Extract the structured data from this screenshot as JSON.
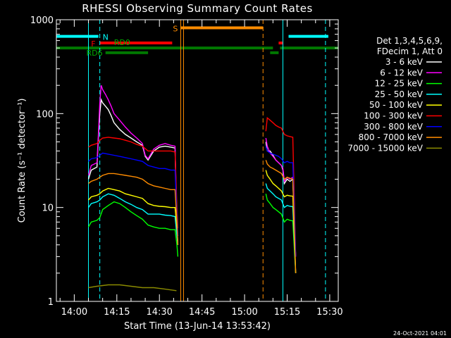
{
  "chart_data": {
    "type": "line",
    "title": "RHESSI Observing Summary Count Rates",
    "xlabel": "Start Time (13-Jun-14 13:53:42)",
    "ylabel": "Count Rate (s⁻¹ detector⁻¹)",
    "yscale": "log",
    "ylim": [
      1,
      1000
    ],
    "xlim": [
      "13:53:42",
      "15:33:00"
    ],
    "x_ticks": [
      "14:00",
      "14:15",
      "14:30",
      "14:45",
      "15:00",
      "15:15",
      "15:30"
    ],
    "y_ticks": [
      "1",
      "10",
      "100",
      "1000"
    ],
    "date_stamp": "24-Oct-2021 04:01",
    "legend": {
      "header": [
        "Det 1,3,4,5,6,9,",
        "FDecim 1, Att 0"
      ],
      "placement": "right",
      "entries": [
        {
          "label": "3 - 6 keV",
          "color": "#ffffff"
        },
        {
          "label": "6 - 12 keV",
          "color": "#ff00ff"
        },
        {
          "label": "12 - 25 keV",
          "color": "#00ff00"
        },
        {
          "label": "25 - 50 keV",
          "color": "#00ffff"
        },
        {
          "label": "50 - 100 keV",
          "color": "#ffff00"
        },
        {
          "label": "100 - 300 keV",
          "color": "#ff0000"
        },
        {
          "label": "300 - 800 keV",
          "color": "#0000ff"
        },
        {
          "label": "800 - 7000 keV",
          "color": "#ff8c00"
        },
        {
          "label": "7000 - 15000 keV",
          "color": "#8b8b00"
        }
      ]
    },
    "flag_labels": {
      "night": "N",
      "flare": "F",
      "saa": "S",
      "rd0": "RD0",
      "rd6": "RD6"
    },
    "flag_bars": [
      {
        "name": "N",
        "color": "#00ffff",
        "start": "13:53:42",
        "end": "14:08:30",
        "level": 665
      },
      {
        "name": "N",
        "color": "#00ffff",
        "start": "15:15:30",
        "end": "15:29:30",
        "level": 665
      },
      {
        "name": "F",
        "color": "#ff0000",
        "start": "14:09:00",
        "end": "14:34:30",
        "level": 565
      },
      {
        "name": "F",
        "color": "#ff0000",
        "start": "15:12:00",
        "end": "15:13:30",
        "level": 565
      },
      {
        "name": "S",
        "color": "#ff8c00",
        "start": "14:37:30",
        "end": "15:06:30",
        "level": 820
      },
      {
        "name": "RD0",
        "color": "#007700",
        "start": "13:53:42",
        "end": "15:10:00",
        "level": 500
      },
      {
        "name": "RD0",
        "color": "#007700",
        "start": "15:12:30",
        "end": "15:33:00",
        "level": 500
      },
      {
        "name": "RD6",
        "color": "#007700",
        "start": "14:11:00",
        "end": "14:26:00",
        "level": 445
      },
      {
        "name": "RD6",
        "color": "#007700",
        "start": "15:09:00",
        "end": "15:12:00",
        "level": 445
      }
    ],
    "vertical_markers": [
      {
        "time": "14:05:00",
        "color": "#00ffff",
        "style": "solid"
      },
      {
        "time": "14:09:00",
        "color": "#00ffff",
        "style": "dashed"
      },
      {
        "time": "14:37:30",
        "color": "#ff8c00",
        "style": "solid"
      },
      {
        "time": "14:38:30",
        "color": "#ff8c00",
        "style": "solid"
      },
      {
        "time": "15:06:30",
        "color": "#ff8c00",
        "style": "dashed"
      },
      {
        "time": "15:13:30",
        "color": "#00ffff",
        "style": "solid"
      },
      {
        "time": "15:28:30",
        "color": "#00ffff",
        "style": "dashed"
      }
    ],
    "series": [
      {
        "name": "3 - 6 keV",
        "color": "#ffffff",
        "segments": [
          {
            "x": [
              "14:05:00",
              "14:06:00",
              "14:08:00",
              "14:08:30",
              "14:09:00",
              "14:09:30",
              "14:10:00",
              "14:11:00",
              "14:12:00",
              "14:13:00",
              "14:14:00",
              "14:16:00",
              "14:18:00",
              "14:20:00",
              "14:22:00",
              "14:24:00",
              "14:25:00",
              "14:26:00",
              "14:28:00",
              "14:30:00",
              "14:32:00",
              "14:34:00",
              "14:35:30",
              "14:36:10",
              "14:36:30"
            ],
            "y": [
              20,
              25,
              27,
              55,
              100,
              140,
              130,
              120,
              110,
              95,
              80,
              68,
              60,
              55,
              50,
              46,
              35,
              32,
              40,
              44,
              45,
              44,
              43,
              6,
              4
            ]
          },
          {
            "x": [
              "15:07:30",
              "15:08:00",
              "15:09:00",
              "15:10:00",
              "15:11:00",
              "15:12:00",
              "15:13:00",
              "15:13:30",
              "15:14:00",
              "15:15:00",
              "15:16:00",
              "15:17:00",
              "15:18:00"
            ],
            "y": [
              50,
              40,
              40,
              36,
              32,
              30,
              28,
              25,
              18,
              20,
              19,
              20,
              3
            ]
          }
        ]
      },
      {
        "name": "6 - 12 keV",
        "color": "#ff00ff",
        "segments": [
          {
            "x": [
              "14:05:00",
              "14:06:00",
              "14:08:00",
              "14:08:30",
              "14:09:00",
              "14:09:30",
              "14:10:00",
              "14:11:00",
              "14:12:00",
              "14:13:00",
              "14:14:00",
              "14:16:00",
              "14:18:00",
              "14:20:00",
              "14:22:00",
              "14:24:00",
              "14:25:00",
              "14:26:00",
              "14:28:00",
              "14:30:00",
              "14:32:00",
              "14:34:00",
              "14:35:30",
              "14:36:10",
              "14:36:30"
            ],
            "y": [
              22,
              28,
              30,
              60,
              130,
              200,
              180,
              160,
              140,
              120,
              100,
              85,
              72,
              62,
              55,
              48,
              36,
              33,
              42,
              46,
              48,
              46,
              45,
              7,
              5
            ]
          },
          {
            "x": [
              "15:07:30",
              "15:08:00",
              "15:09:00",
              "15:10:00",
              "15:11:00",
              "15:12:00",
              "15:13:00",
              "15:13:30",
              "15:14:00",
              "15:15:00",
              "15:16:00",
              "15:17:00",
              "15:18:00"
            ],
            "y": [
              55,
              45,
              38,
              35,
              32,
              30,
              28,
              26,
              19,
              21,
              20,
              21,
              3
            ]
          }
        ]
      },
      {
        "name": "12 - 25 keV",
        "color": "#00ff00",
        "segments": [
          {
            "x": [
              "14:05:00",
              "14:06:00",
              "14:08:00",
              "14:09:00",
              "14:10:00",
              "14:12:00",
              "14:14:00",
              "14:16:00",
              "14:18:00",
              "14:20:00",
              "14:22:00",
              "14:24:00",
              "14:26:00",
              "14:28:00",
              "14:30:00",
              "14:32:00",
              "14:34:00",
              "14:35:30",
              "14:36:10",
              "14:36:30"
            ],
            "y": [
              6.2,
              7.0,
              7.3,
              7.8,
              9.5,
              10.5,
              11.5,
              11,
              10,
              9,
              8.2,
              7.5,
              6.5,
              6.2,
              6.0,
              6.0,
              5.8,
              5.8,
              4,
              3
            ]
          },
          {
            "x": [
              "15:07:30",
              "15:08:00",
              "15:09:00",
              "15:10:00",
              "15:11:00",
              "15:12:00",
              "15:13:00",
              "15:14:00",
              "15:15:00",
              "15:16:00",
              "15:17:00",
              "15:18:00"
            ],
            "y": [
              14,
              12,
              11,
              10,
              9.5,
              9,
              8.5,
              7,
              7.5,
              7.3,
              7.2,
              2
            ]
          }
        ]
      },
      {
        "name": "25 - 50 keV",
        "color": "#00ffff",
        "segments": [
          {
            "x": [
              "14:05:00",
              "14:06:00",
              "14:08:00",
              "14:09:00",
              "14:10:00",
              "14:12:00",
              "14:14:00",
              "14:16:00",
              "14:18:00",
              "14:20:00",
              "14:22:00",
              "14:24:00",
              "14:26:00",
              "14:28:00",
              "14:30:00",
              "14:32:00",
              "14:34:00",
              "14:35:30",
              "14:36:10",
              "14:36:30"
            ],
            "y": [
              10,
              11,
              11.5,
              12,
              13,
              14,
              13.5,
              12.5,
              11.5,
              10.8,
              10,
              9.5,
              8.5,
              8.5,
              8.5,
              8.3,
              8.2,
              8.0,
              5,
              4
            ]
          },
          {
            "x": [
              "15:07:30",
              "15:08:00",
              "15:09:00",
              "15:10:00",
              "15:11:00",
              "15:12:00",
              "15:13:00",
              "15:14:00",
              "15:15:00",
              "15:16:00",
              "15:17:00",
              "15:18:00"
            ],
            "y": [
              18,
              16,
              15,
              14,
              13,
              12.5,
              12,
              10,
              10.5,
              10.3,
              10.2,
              2
            ]
          }
        ]
      },
      {
        "name": "50 - 100 keV",
        "color": "#ffff00",
        "segments": [
          {
            "x": [
              "14:05:00",
              "14:06:00",
              "14:08:00",
              "14:09:00",
              "14:10:00",
              "14:12:00",
              "14:14:00",
              "14:16:00",
              "14:18:00",
              "14:20:00",
              "14:22:00",
              "14:24:00",
              "14:26:00",
              "14:28:00",
              "14:30:00",
              "14:32:00",
              "14:34:00",
              "14:35:30",
              "14:36:10",
              "14:36:30"
            ],
            "y": [
              12,
              13,
              13.5,
              14,
              15,
              16,
              15.5,
              15,
              14,
              13.5,
              13,
              12.5,
              11,
              10.5,
              10.3,
              10.2,
              10,
              10,
              6,
              5
            ]
          },
          {
            "x": [
              "15:07:30",
              "15:08:00",
              "15:09:00",
              "15:10:00",
              "15:11:00",
              "15:12:00",
              "15:13:00",
              "15:14:00",
              "15:15:00",
              "15:16:00",
              "15:17:00",
              "15:18:00"
            ],
            "y": [
              25,
              22,
              20,
              18,
              17,
              16,
              15,
              13,
              13.5,
              13.3,
              13.2,
              2
            ]
          }
        ]
      },
      {
        "name": "100 - 300 keV",
        "color": "#ff0000",
        "segments": [
          {
            "x": [
              "14:05:00",
              "14:06:00",
              "14:08:00",
              "14:09:00",
              "14:10:00",
              "14:12:00",
              "14:14:00",
              "14:16:00",
              "14:18:00",
              "14:20:00",
              "14:22:00",
              "14:24:00",
              "14:26:00",
              "14:28:00",
              "14:30:00",
              "14:32:00",
              "14:34:00",
              "14:35:30",
              "14:36:10",
              "14:36:30"
            ],
            "y": [
              44,
              46,
              48,
              52,
              55,
              56,
              55,
              54,
              52,
              50,
              47,
              45,
              40,
              40,
              40,
              40,
              40,
              39,
              10,
              6
            ]
          },
          {
            "x": [
              "15:07:30",
              "15:08:00",
              "15:09:00",
              "15:10:00",
              "15:11:00",
              "15:12:00",
              "15:13:00",
              "15:14:00",
              "15:15:00",
              "15:16:00",
              "15:17:00",
              "15:18:00"
            ],
            "y": [
              65,
              90,
              85,
              80,
              75,
              72,
              70,
              60,
              58,
              57,
              56,
              3
            ]
          }
        ]
      },
      {
        "name": "300 - 800 keV",
        "color": "#0000ff",
        "segments": [
          {
            "x": [
              "14:05:00",
              "14:06:00",
              "14:08:00",
              "14:09:00",
              "14:10:00",
              "14:12:00",
              "14:14:00",
              "14:16:00",
              "14:18:00",
              "14:20:00",
              "14:22:00",
              "14:24:00",
              "14:26:00",
              "14:28:00",
              "14:30:00",
              "14:32:00",
              "14:34:00",
              "14:35:30",
              "14:36:10",
              "14:36:30"
            ],
            "y": [
              31,
              33,
              34,
              36,
              38,
              37,
              36,
              35,
              34,
              33,
              32,
              31,
              28,
              27,
              26,
              26,
              25,
              25,
              8,
              5
            ]
          },
          {
            "x": [
              "15:07:30",
              "15:08:00",
              "15:09:00",
              "15:10:00",
              "15:11:00",
              "15:12:00",
              "15:13:00",
              "15:14:00",
              "15:15:00",
              "15:16:00",
              "15:17:00",
              "15:18:00"
            ],
            "y": [
              45,
              40,
              38,
              37,
              36,
              35,
              33,
              30,
              31,
              30,
              30,
              3
            ]
          }
        ]
      },
      {
        "name": "800 - 7000 keV",
        "color": "#ff8c00",
        "segments": [
          {
            "x": [
              "14:05:00",
              "14:06:00",
              "14:08:00",
              "14:09:00",
              "14:10:00",
              "14:12:00",
              "14:14:00",
              "14:16:00",
              "14:18:00",
              "14:20:00",
              "14:22:00",
              "14:24:00",
              "14:26:00",
              "14:28:00",
              "14:30:00",
              "14:32:00",
              "14:34:00",
              "14:35:30",
              "14:36:10",
              "14:36:30"
            ],
            "y": [
              18,
              19,
              20,
              21,
              22,
              23,
              23,
              22.5,
              22,
              21.5,
              21,
              20,
              18,
              17,
              16.5,
              16,
              15.5,
              15.5,
              7,
              4
            ]
          },
          {
            "x": [
              "15:07:30",
              "15:08:00",
              "15:09:00",
              "15:10:00",
              "15:11:00",
              "15:12:00",
              "15:13:00",
              "15:14:00",
              "15:15:00",
              "15:16:00",
              "15:17:00",
              "15:18:00"
            ],
            "y": [
              32,
              29,
              27,
              26,
              25,
              24,
              23,
              20,
              21,
              20.5,
              20,
              2
            ]
          }
        ]
      },
      {
        "name": "7000 - 15000 keV",
        "color": "#8b8b00",
        "segments": [
          {
            "x": [
              "14:05:00",
              "14:08:00",
              "14:12:00",
              "14:16:00",
              "14:20:00",
              "14:24:00",
              "14:28:00",
              "14:32:00",
              "14:36:00"
            ],
            "y": [
              1.4,
              1.45,
              1.5,
              1.5,
              1.45,
              1.4,
              1.4,
              1.35,
              1.3
            ]
          }
        ]
      }
    ]
  }
}
